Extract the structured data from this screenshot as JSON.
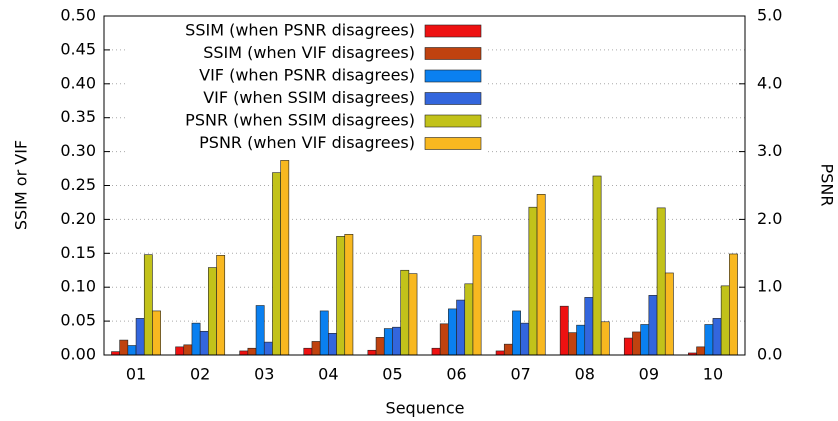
{
  "chart_data": {
    "type": "bar",
    "categories": [
      "01",
      "02",
      "03",
      "04",
      "05",
      "06",
      "07",
      "08",
      "09",
      "10"
    ],
    "xlabel": "Sequence",
    "ylabel": "SSIM or VIF",
    "y2label": "PSNR",
    "ylim": [
      0,
      0.5
    ],
    "yticks": [
      {
        "value": 0,
        "label": "0.00"
      },
      {
        "value": 0.05,
        "label": "0.05"
      },
      {
        "value": 0.1,
        "label": "0.10"
      },
      {
        "value": 0.15,
        "label": "0.15"
      },
      {
        "value": 0.2,
        "label": "0.20"
      },
      {
        "value": 0.25,
        "label": "0.25"
      },
      {
        "value": 0.3,
        "label": "0.30"
      },
      {
        "value": 0.35,
        "label": "0.35"
      },
      {
        "value": 0.4,
        "label": "0.40"
      },
      {
        "value": 0.45,
        "label": "0.45"
      },
      {
        "value": 0.5,
        "label": "0.50"
      }
    ],
    "y2lim": [
      0,
      5
    ],
    "y2ticks": [
      {
        "value": 0,
        "label": "0.0"
      },
      {
        "value": 1,
        "label": "1.0"
      },
      {
        "value": 2,
        "label": "2.0"
      },
      {
        "value": 3,
        "label": "3.0"
      },
      {
        "value": 4,
        "label": "4.0"
      },
      {
        "value": 5,
        "label": "5.0"
      }
    ],
    "grid": true,
    "legend": "upper left",
    "series": [
      {
        "name": "SSIM (when PSNR disagrees)",
        "color": "#ee1111",
        "values": [
          0.005,
          0.012,
          0.006,
          0.01,
          0.007,
          0.01,
          0.006,
          0.072,
          0.025,
          0.003
        ]
      },
      {
        "name": "SSIM (when VIF disagrees)",
        "color": "#c0420f",
        "values": [
          0.022,
          0.015,
          0.01,
          0.02,
          0.026,
          0.046,
          0.016,
          0.033,
          0.034,
          0.012
        ]
      },
      {
        "name": "VIF (when PSNR disagrees)",
        "color": "#0a80f0",
        "values": [
          0.014,
          0.047,
          0.073,
          0.065,
          0.039,
          0.068,
          0.065,
          0.044,
          0.045,
          0.045
        ]
      },
      {
        "name": "VIF (when SSIM disagrees)",
        "color": "#3366dd",
        "values": [
          0.054,
          0.035,
          0.019,
          0.032,
          0.041,
          0.081,
          0.047,
          0.085,
          0.088,
          0.054
        ]
      },
      {
        "name": "PSNR (when SSIM disagrees)",
        "color": "#c2c21a",
        "axis": "y2",
        "values": [
          1.48,
          1.29,
          2.69,
          1.75,
          1.25,
          1.05,
          2.18,
          2.64,
          2.17,
          1.02
        ]
      },
      {
        "name": "PSNR (when VIF disagrees)",
        "color": "#f8b820",
        "axis": "y2",
        "values": [
          0.65,
          1.47,
          2.87,
          1.78,
          1.2,
          1.76,
          2.37,
          0.49,
          1.21,
          1.49
        ]
      }
    ]
  }
}
